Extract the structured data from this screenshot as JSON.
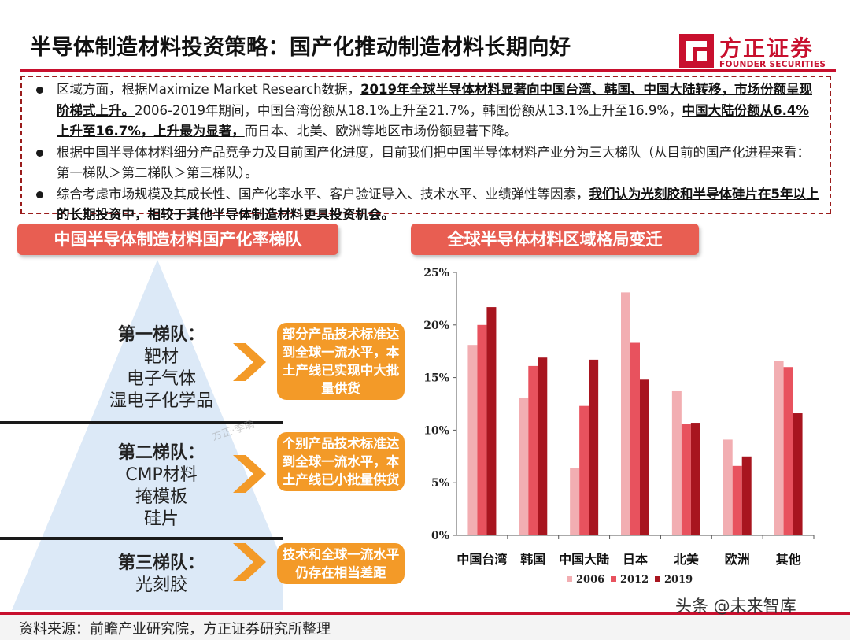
{
  "title": "半导体制造材料投资策略：国产化推动制造材料长期向好",
  "logo": {
    "cn": "方正证券",
    "en": "FOUNDER SECURITIES"
  },
  "bullets": [
    {
      "plain1": "区域方面，根据Maximize Market Research数据，",
      "bold1": "2019年全球半导体材料显著向中国台湾、韩国、中国大陆转移，市场份额呈现阶梯式上升。",
      "plain2": "2006-2019年期间，中国台湾份额从18.1%上升至21.7%，韩国份额从13.1%上升至16.9%，",
      "bold2": "中国大陆份额从6.4%上升至16.7%，上升最为显著，",
      "plain3": "而日本、北美、欧洲等地区市场份额显著下降。"
    },
    {
      "plain1": "根据中国半导体材料细分产品竞争力及目前国产化进度，目前我们把中国半导体材料产业分为三大梯队（从目前的国产化进程来看：第一梯队＞第二梯队＞第三梯队）。"
    },
    {
      "plain1": "综合考虑市场规模及其成长性、国产化率水平、客户验证导入、技术水平、业绩弹性等因素，",
      "bold1": "我们认为光刻胶和半导体硅片在5年以上的长期投资中，相较于其他半导体制造材料更具投资机会。"
    }
  ],
  "left_header": "中国半导体制造材料国产化率梯队",
  "right_header": "全球半导体材料区域格局变迁",
  "tiers": [
    {
      "head": "第一梯队：",
      "items": [
        "靶材",
        "电子气体",
        "湿电子化学品"
      ],
      "note": "部分产品技术标准达到全球一流水平，本土产线已实现中大批量供货"
    },
    {
      "head": "第二梯队：",
      "items": [
        "CMP材料",
        "掩模板",
        "硅片"
      ],
      "note": "个别产品技术标准达到全球一流水平，本土产线已小批量供货"
    },
    {
      "head": "第三梯队：",
      "items": [
        "光刻胶"
      ],
      "note": "技术和全球一流水平仍存在相当差距"
    }
  ],
  "watermark": "方正·李萌",
  "chart_data": {
    "type": "bar",
    "categories": [
      "中国台湾",
      "韩国",
      "中国大陆",
      "日本",
      "北美",
      "欧洲",
      "其他"
    ],
    "series": [
      {
        "name": "2006",
        "color": "#f2aeb2",
        "values": [
          18.1,
          13.1,
          6.4,
          23.1,
          13.7,
          9.1,
          16.6
        ]
      },
      {
        "name": "2012",
        "color": "#e8525e",
        "values": [
          20.0,
          16.1,
          12.3,
          18.3,
          10.6,
          6.6,
          16.0
        ]
      },
      {
        "name": "2019",
        "color": "#a8151f",
        "values": [
          21.7,
          16.9,
          16.7,
          14.8,
          10.7,
          7.5,
          11.6
        ]
      }
    ],
    "ylim": [
      0,
      25
    ],
    "yticks": [
      "0%",
      "5%",
      "10%",
      "15%",
      "20%",
      "25%"
    ],
    "grid": false,
    "legend": "bottom"
  },
  "source": "资料来源：前瞻产业研究院，方正证券研究所整理",
  "corner_watermark": "头条 @未来智库"
}
